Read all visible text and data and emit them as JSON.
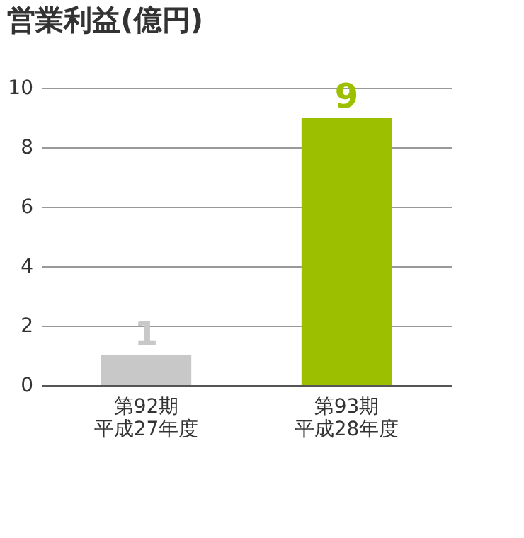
{
  "chart_data": {
    "type": "bar",
    "title": "営業利益(億円)",
    "categories": [
      "第92期平成27年度",
      "第93期平成28年度"
    ],
    "values": [
      1,
      9
    ],
    "colors": [
      "#c8c8c8",
      "#9cbf00"
    ],
    "ylim": [
      0,
      10
    ],
    "yticks": [
      0,
      2,
      4,
      6,
      8,
      10
    ],
    "grid": "y",
    "data_labels": true
  }
}
